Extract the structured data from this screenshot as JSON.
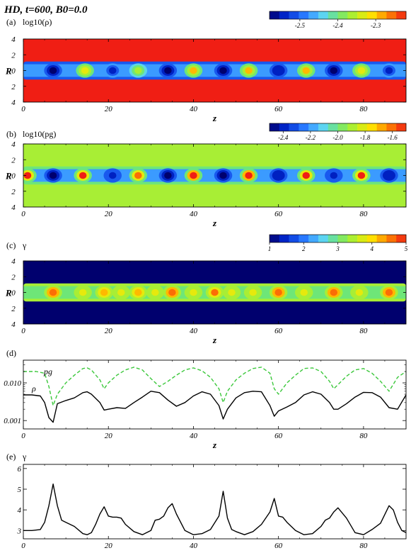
{
  "title": "HD, t=600, B0=0.0",
  "panels": {
    "a": {
      "label": "(a)",
      "quantity": "log10(ρ)",
      "colorbar_ticks": [
        "-2.5",
        "-2.4",
        "-2.3"
      ]
    },
    "b": {
      "label": "(b)",
      "quantity": "log10(pg)",
      "colorbar_ticks": [
        "-2.4",
        "-2.2",
        "-2.0",
        "-1.8",
        "-1.6"
      ]
    },
    "c": {
      "label": "(c)",
      "quantity": "γ",
      "colorbar_ticks": [
        "1",
        "2",
        "3",
        "4",
        "5"
      ]
    },
    "d": {
      "label": "(d)",
      "series_labels": [
        "pg",
        "ρ"
      ],
      "yticks": [
        "0.010",
        "0.001"
      ]
    },
    "e": {
      "label": "(e)",
      "series_labels": [
        "γ"
      ],
      "yticks": [
        "3",
        "4",
        "5",
        "6"
      ]
    }
  },
  "axis_labels": {
    "x": "z",
    "y": "R"
  },
  "xticks": [
    "0",
    "20",
    "40",
    "60",
    "80"
  ],
  "ryticks": [
    "4",
    "2",
    "0",
    "2",
    "4"
  ],
  "colors": {
    "rho_background": "#ff3a14",
    "pg_background": "#7fe04a",
    "gamma_background": "#1a2cf0",
    "pg_line": "#3cc83c",
    "rho_line": "#000000"
  },
  "chart_data": [
    {
      "type": "heatmap",
      "panel": "a",
      "title": "log10(ρ)",
      "xlabel": "z",
      "ylabel": "R",
      "xlim": [
        0,
        90
      ],
      "ylim": [
        -4,
        4
      ],
      "colorbar_range": [
        -2.58,
        -2.22
      ],
      "background_value": -2.22,
      "jet_radius": 1.0,
      "cell_centers_z": [
        7,
        14.5,
        21,
        27,
        34,
        40,
        47,
        53,
        60,
        66.5,
        73,
        79.5,
        86
      ],
      "cell_values": [
        -2.58,
        -2.32,
        -2.55,
        -2.35,
        -2.57,
        -2.3,
        -2.58,
        -2.31,
        -2.56,
        -2.3,
        -2.57,
        -2.33,
        -2.55
      ],
      "jet_values": [
        -2.5,
        -2.46
      ]
    },
    {
      "type": "heatmap",
      "panel": "b",
      "title": "log10(pg)",
      "xlabel": "z",
      "ylabel": "R",
      "xlim": [
        0,
        90
      ],
      "ylim": [
        -4,
        4
      ],
      "colorbar_range": [
        -2.5,
        -1.5
      ],
      "background_value": -1.9,
      "jet_radius": 1.0,
      "cell_centers_z": [
        1,
        7,
        14,
        21,
        27,
        34,
        40,
        47,
        53,
        60,
        66.5,
        73,
        79.5,
        86
      ],
      "cell_values": [
        -1.55,
        -2.48,
        -1.53,
        -2.4,
        -1.56,
        -2.45,
        -1.52,
        -2.47,
        -1.52,
        -2.43,
        -1.55,
        -2.42,
        -1.53,
        -2.44
      ],
      "jet_values": [
        -2.0,
        -2.2
      ]
    },
    {
      "type": "heatmap",
      "panel": "c",
      "title": "γ",
      "xlabel": "z",
      "ylabel": "R",
      "xlim": [
        0,
        90
      ],
      "ylim": [
        -4,
        4
      ],
      "colorbar_range": [
        1,
        5
      ],
      "background_value": 1.0,
      "jet_radius": 1.0,
      "cell_centers_z": [
        7,
        14,
        19,
        23,
        27,
        31,
        35,
        40,
        45,
        49,
        54,
        60,
        66,
        73,
        79,
        86
      ],
      "cell_values": [
        4.6,
        3.6,
        4.3,
        3.6,
        4.2,
        3.7,
        4.5,
        3.6,
        4.4,
        3.7,
        3.7,
        4.6,
        3.6,
        4.5,
        3.7,
        4.5
      ],
      "jet_values": [
        3.3,
        3.0
      ]
    },
    {
      "type": "line",
      "panel": "d",
      "xlabel": "z",
      "ylabel": "",
      "yscale": "log",
      "xlim": [
        0,
        90
      ],
      "ylim": [
        0.0006,
        0.04
      ],
      "series": [
        {
          "name": "pg",
          "style": "dashed",
          "x": [
            0,
            3,
            5,
            6,
            7,
            8,
            10,
            12,
            14,
            15,
            16,
            18,
            19,
            20,
            22,
            24,
            26,
            28,
            30,
            32,
            34,
            36,
            38,
            40,
            42,
            44,
            46,
            47,
            48,
            50,
            52,
            54,
            56,
            58,
            59,
            60,
            62,
            64,
            66,
            68,
            70,
            72,
            73,
            74,
            76,
            78,
            80,
            82,
            84,
            86,
            88,
            90
          ],
          "y": [
            0.02,
            0.02,
            0.018,
            0.008,
            0.0025,
            0.005,
            0.01,
            0.016,
            0.024,
            0.025,
            0.022,
            0.012,
            0.007,
            0.01,
            0.016,
            0.022,
            0.026,
            0.022,
            0.013,
            0.008,
            0.011,
            0.016,
            0.022,
            0.025,
            0.021,
            0.014,
            0.007,
            0.003,
            0.006,
            0.012,
            0.018,
            0.024,
            0.026,
            0.018,
            0.007,
            0.005,
            0.01,
            0.016,
            0.024,
            0.025,
            0.02,
            0.011,
            0.007,
            0.009,
            0.015,
            0.022,
            0.024,
            0.018,
            0.011,
            0.006,
            0.014,
            0.02
          ]
        },
        {
          "name": "ρ",
          "style": "solid",
          "x": [
            0,
            2,
            4,
            5,
            6,
            7,
            8,
            10,
            12,
            14,
            15,
            16,
            18,
            19,
            20,
            22,
            24,
            26,
            28,
            30,
            32,
            34,
            36,
            38,
            40,
            42,
            44,
            46,
            47,
            48,
            50,
            52,
            54,
            56,
            58,
            59,
            60,
            62,
            64,
            66,
            68,
            70,
            72,
            73,
            74,
            76,
            78,
            80,
            82,
            84,
            86,
            88,
            90
          ],
          "y": [
            0.0048,
            0.0048,
            0.0045,
            0.003,
            0.0012,
            0.0009,
            0.0028,
            0.0034,
            0.004,
            0.0055,
            0.0058,
            0.005,
            0.003,
            0.0019,
            0.002,
            0.0022,
            0.0021,
            0.003,
            0.0042,
            0.006,
            0.0055,
            0.0035,
            0.0024,
            0.003,
            0.0045,
            0.0058,
            0.005,
            0.0025,
            0.0011,
            0.002,
            0.004,
            0.0055,
            0.006,
            0.0058,
            0.0025,
            0.0013,
            0.0018,
            0.0023,
            0.003,
            0.0048,
            0.0058,
            0.005,
            0.003,
            0.002,
            0.002,
            0.0028,
            0.0042,
            0.0056,
            0.0055,
            0.0042,
            0.0022,
            0.002,
            0.0048
          ]
        }
      ]
    },
    {
      "type": "line",
      "panel": "e",
      "xlabel": "z",
      "ylabel": "γ",
      "xlim": [
        0,
        90
      ],
      "ylim": [
        2.6,
        6.2
      ],
      "series": [
        {
          "name": "γ",
          "style": "solid",
          "x": [
            0,
            2,
            4,
            5,
            6,
            7,
            8,
            9,
            10,
            12,
            14,
            15,
            16,
            17,
            18,
            19,
            20,
            21,
            22,
            23,
            24,
            26,
            28,
            30,
            31,
            32,
            33,
            34,
            35,
            36,
            38,
            40,
            42,
            44,
            46,
            47,
            48,
            49,
            50,
            52,
            54,
            56,
            58,
            59,
            60,
            61,
            62,
            64,
            66,
            68,
            70,
            71,
            72,
            73,
            74,
            76,
            78,
            80,
            82,
            84,
            86,
            87,
            88,
            89,
            90
          ],
          "y": [
            3.0,
            3.0,
            3.05,
            3.4,
            4.2,
            5.25,
            4.2,
            3.5,
            3.4,
            3.2,
            2.85,
            2.8,
            2.9,
            3.3,
            3.8,
            4.15,
            3.7,
            3.65,
            3.65,
            3.6,
            3.3,
            2.95,
            2.8,
            3.0,
            3.5,
            3.55,
            3.7,
            4.1,
            4.3,
            3.8,
            3.0,
            2.8,
            2.85,
            3.05,
            3.7,
            4.9,
            3.6,
            3.05,
            2.95,
            2.8,
            2.95,
            3.3,
            3.9,
            4.55,
            3.7,
            3.65,
            3.4,
            3.0,
            2.8,
            2.85,
            3.2,
            3.5,
            3.6,
            3.9,
            4.1,
            3.6,
            2.9,
            2.8,
            3.05,
            3.35,
            4.2,
            4.0,
            3.4,
            3.0,
            2.9
          ]
        }
      ]
    }
  ]
}
